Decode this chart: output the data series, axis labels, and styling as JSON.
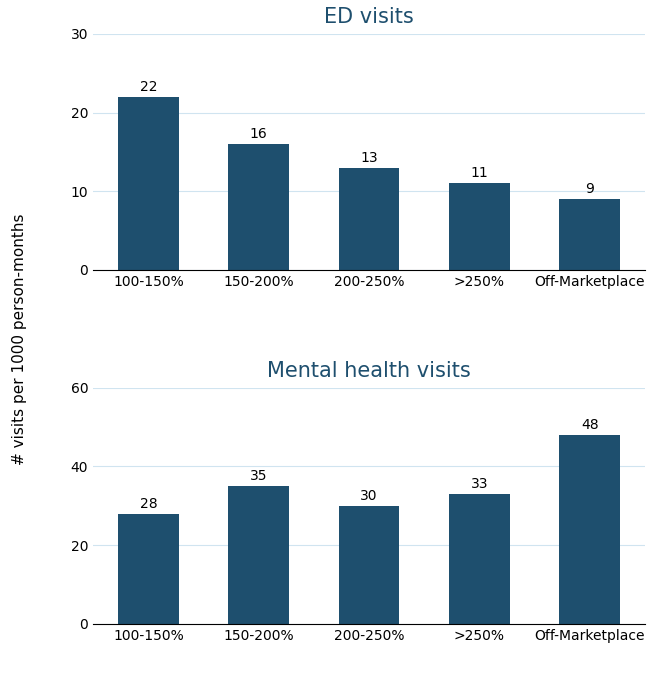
{
  "ed_values": [
    22,
    16,
    13,
    11,
    9
  ],
  "mh_values": [
    28,
    35,
    30,
    33,
    48
  ],
  "categories": [
    "100-150%",
    "150-200%",
    "200-250%",
    ">250%",
    "Off-Marketplace"
  ],
  "bar_color": "#1e4f6e",
  "ed_title": "ED visits",
  "mh_title": "Mental health visits",
  "ylabel": "# visits per 1000 person-months",
  "ed_ylim": [
    0,
    30
  ],
  "mh_ylim": [
    0,
    60
  ],
  "ed_yticks": [
    0,
    10,
    20,
    30
  ],
  "mh_yticks": [
    0,
    20,
    40,
    60
  ],
  "title_color": "#1e4f6e",
  "title_fontsize": 15,
  "label_fontsize": 11,
  "tick_fontsize": 10,
  "annotation_fontsize": 10,
  "bar_width": 0.55,
  "grid_color": "#d0e4f0",
  "grid_linewidth": 0.8
}
